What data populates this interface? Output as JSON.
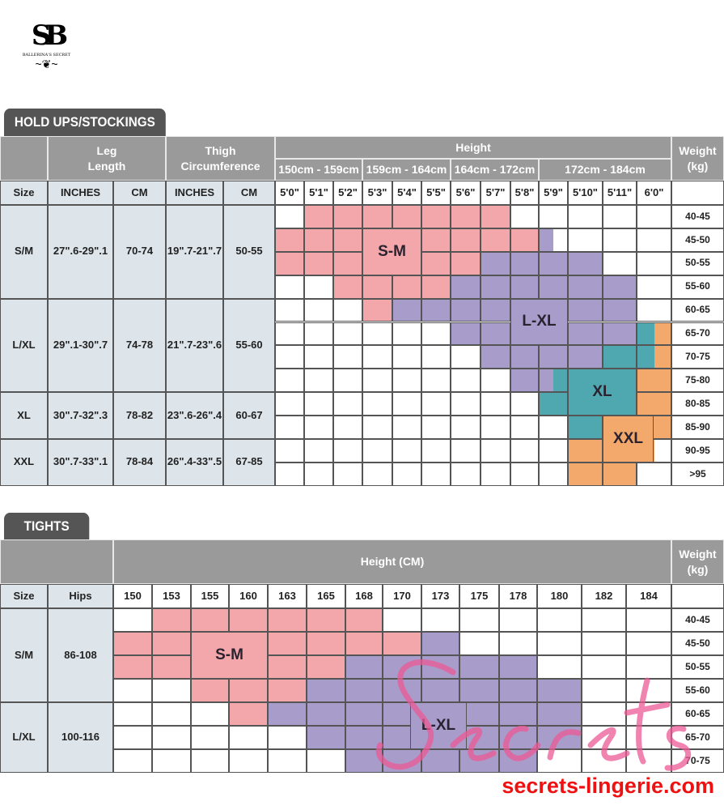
{
  "brand": {
    "logo_letters": "SB",
    "logo_name": "BALLERINA'S SECRET"
  },
  "colors": {
    "header": "#9a9a9a",
    "tab": "#555555",
    "label_bg": "#dde4ea",
    "P": "#f4a7ab",
    "V": "#a89ccb",
    "T": "#4fa8b0",
    "O": "#f4a96c"
  },
  "holdups": {
    "tab": "HOLD UPS/STOCKINGS",
    "leg_length": "Leg\nLength",
    "thigh": "Thigh\nCircumference",
    "height": "Height",
    "weight": "Weight\n(kg)",
    "height_ranges": [
      "150cm - 159cm",
      "159cm - 164cm",
      "164cm - 172cm",
      "172cm - 184cm"
    ],
    "col_heads": [
      "Size",
      "INCHES",
      "CM",
      "INCHES",
      "CM"
    ],
    "heights": [
      "5'0\"",
      "5'1\"",
      "5'2\"",
      "5'3\"",
      "5'4\"",
      "5'5\"",
      "5'6\"",
      "5'7\"",
      "5'8\"",
      "5'9\"",
      "5'10\"",
      "5'11\"",
      "6'0\""
    ],
    "sizes": [
      {
        "size": "S/M",
        "leg_in": "27\".6-29\".1",
        "leg_cm": "70-74",
        "thigh_in": "19\".7-21\".7",
        "thigh_cm": "50-55"
      },
      {
        "size": "L/XL",
        "leg_in": "29\".1-30\".7",
        "leg_cm": "74-78",
        "thigh_in": "21\".7-23\".6",
        "thigh_cm": "55-60"
      },
      {
        "size": "XL",
        "leg_in": "30\".7-32\".3",
        "leg_cm": "78-82",
        "thigh_in": "23\".6-26\".4",
        "thigh_cm": "60-67"
      },
      {
        "size": "XXL",
        "leg_in": "30\".7-33\".1",
        "leg_cm": "78-84",
        "thigh_in": "26\".4-33\".5",
        "thigh_cm": "67-85"
      }
    ],
    "weights": [
      "40-45",
      "45-50",
      "50-55",
      "55-60",
      "60-65",
      "65-70",
      "70-75",
      "75-80",
      "80-85",
      "85-90",
      "90-95",
      ">95"
    ],
    "grid": [
      [
        "W",
        "P",
        "P",
        "P",
        "P",
        "P",
        "P",
        "P",
        "W",
        "W",
        "W",
        "W",
        "W"
      ],
      [
        "P",
        "P",
        "P",
        "P",
        "P",
        "P",
        "P",
        "P",
        "P",
        "V|W",
        "W",
        "W",
        "W"
      ],
      [
        "P",
        "P",
        "P",
        "P",
        "P",
        "P",
        "P",
        "V",
        "V",
        "V",
        "V",
        "W",
        "W"
      ],
      [
        "W",
        "W",
        "P",
        "P",
        "P",
        "P",
        "V",
        "V",
        "V",
        "V",
        "V",
        "V",
        "W"
      ],
      [
        "W",
        "W",
        "W",
        "P",
        "V",
        "V",
        "V",
        "V",
        "V",
        "V",
        "V",
        "V",
        "W"
      ],
      [
        "W",
        "W",
        "W",
        "W",
        "W",
        "W",
        "V",
        "V",
        "V",
        "V",
        "V",
        "V",
        "T|O"
      ],
      [
        "W",
        "W",
        "W",
        "W",
        "W",
        "W",
        "W",
        "V",
        "V",
        "V",
        "V",
        "T",
        "T|O"
      ],
      [
        "W",
        "W",
        "W",
        "W",
        "W",
        "W",
        "W",
        "W",
        "V",
        "V|T",
        "T",
        "T",
        "O"
      ],
      [
        "W",
        "W",
        "W",
        "W",
        "W",
        "W",
        "W",
        "W",
        "W",
        "T",
        "T",
        "T",
        "O"
      ],
      [
        "W",
        "W",
        "W",
        "W",
        "W",
        "W",
        "W",
        "W",
        "W",
        "W",
        "T",
        "O",
        "O"
      ],
      [
        "W",
        "W",
        "W",
        "W",
        "W",
        "W",
        "W",
        "W",
        "W",
        "W",
        "O",
        "O",
        "O|W"
      ],
      [
        "W",
        "W",
        "W",
        "W",
        "W",
        "W",
        "W",
        "W",
        "W",
        "W",
        "O",
        "O",
        "W"
      ]
    ],
    "zones": [
      "S-M",
      "L-XL",
      "XL",
      "XXL"
    ]
  },
  "tights": {
    "tab": "TIGHTS",
    "height": "Height (CM)",
    "weight": "Weight\n(kg)",
    "col_heads": [
      "Size",
      "Hips"
    ],
    "heights": [
      "150",
      "153",
      "155",
      "160",
      "163",
      "165",
      "168",
      "170",
      "173",
      "175",
      "178",
      "180",
      "182",
      "184"
    ],
    "sizes": [
      {
        "size": "S/M",
        "hips": "86-108"
      },
      {
        "size": "L/XL",
        "hips": "100-116"
      }
    ],
    "weights": [
      "40-45",
      "45-50",
      "50-55",
      "55-60",
      "60-65",
      "65-70",
      "70-75"
    ],
    "grid": [
      [
        "W",
        "P",
        "P",
        "P",
        "P",
        "P",
        "P",
        "W",
        "W",
        "W",
        "W",
        "W",
        "W",
        "W"
      ],
      [
        "P",
        "P",
        "P",
        "P",
        "P",
        "P",
        "P",
        "P",
        "V",
        "W",
        "W",
        "W",
        "W",
        "W"
      ],
      [
        "P",
        "P",
        "P",
        "P",
        "P",
        "P",
        "V",
        "V",
        "V",
        "V",
        "V",
        "W",
        "W",
        "W"
      ],
      [
        "W",
        "W",
        "P",
        "P",
        "P",
        "V",
        "V",
        "V",
        "V",
        "V",
        "V",
        "V",
        "W",
        "W"
      ],
      [
        "W",
        "W",
        "W",
        "P",
        "V",
        "V",
        "V",
        "V",
        "V",
        "V",
        "V",
        "V",
        "W",
        "W"
      ],
      [
        "W",
        "W",
        "W",
        "W",
        "W",
        "V",
        "V",
        "V",
        "V",
        "V",
        "V",
        "V",
        "W",
        "W"
      ],
      [
        "W",
        "W",
        "W",
        "W",
        "W",
        "W",
        "V",
        "V",
        "V",
        "V",
        "V",
        "W",
        "W",
        "W"
      ]
    ],
    "zones": [
      "S-M",
      "L-XL"
    ]
  },
  "watermark": "Secrets",
  "website": "secrets-lingerie.com"
}
